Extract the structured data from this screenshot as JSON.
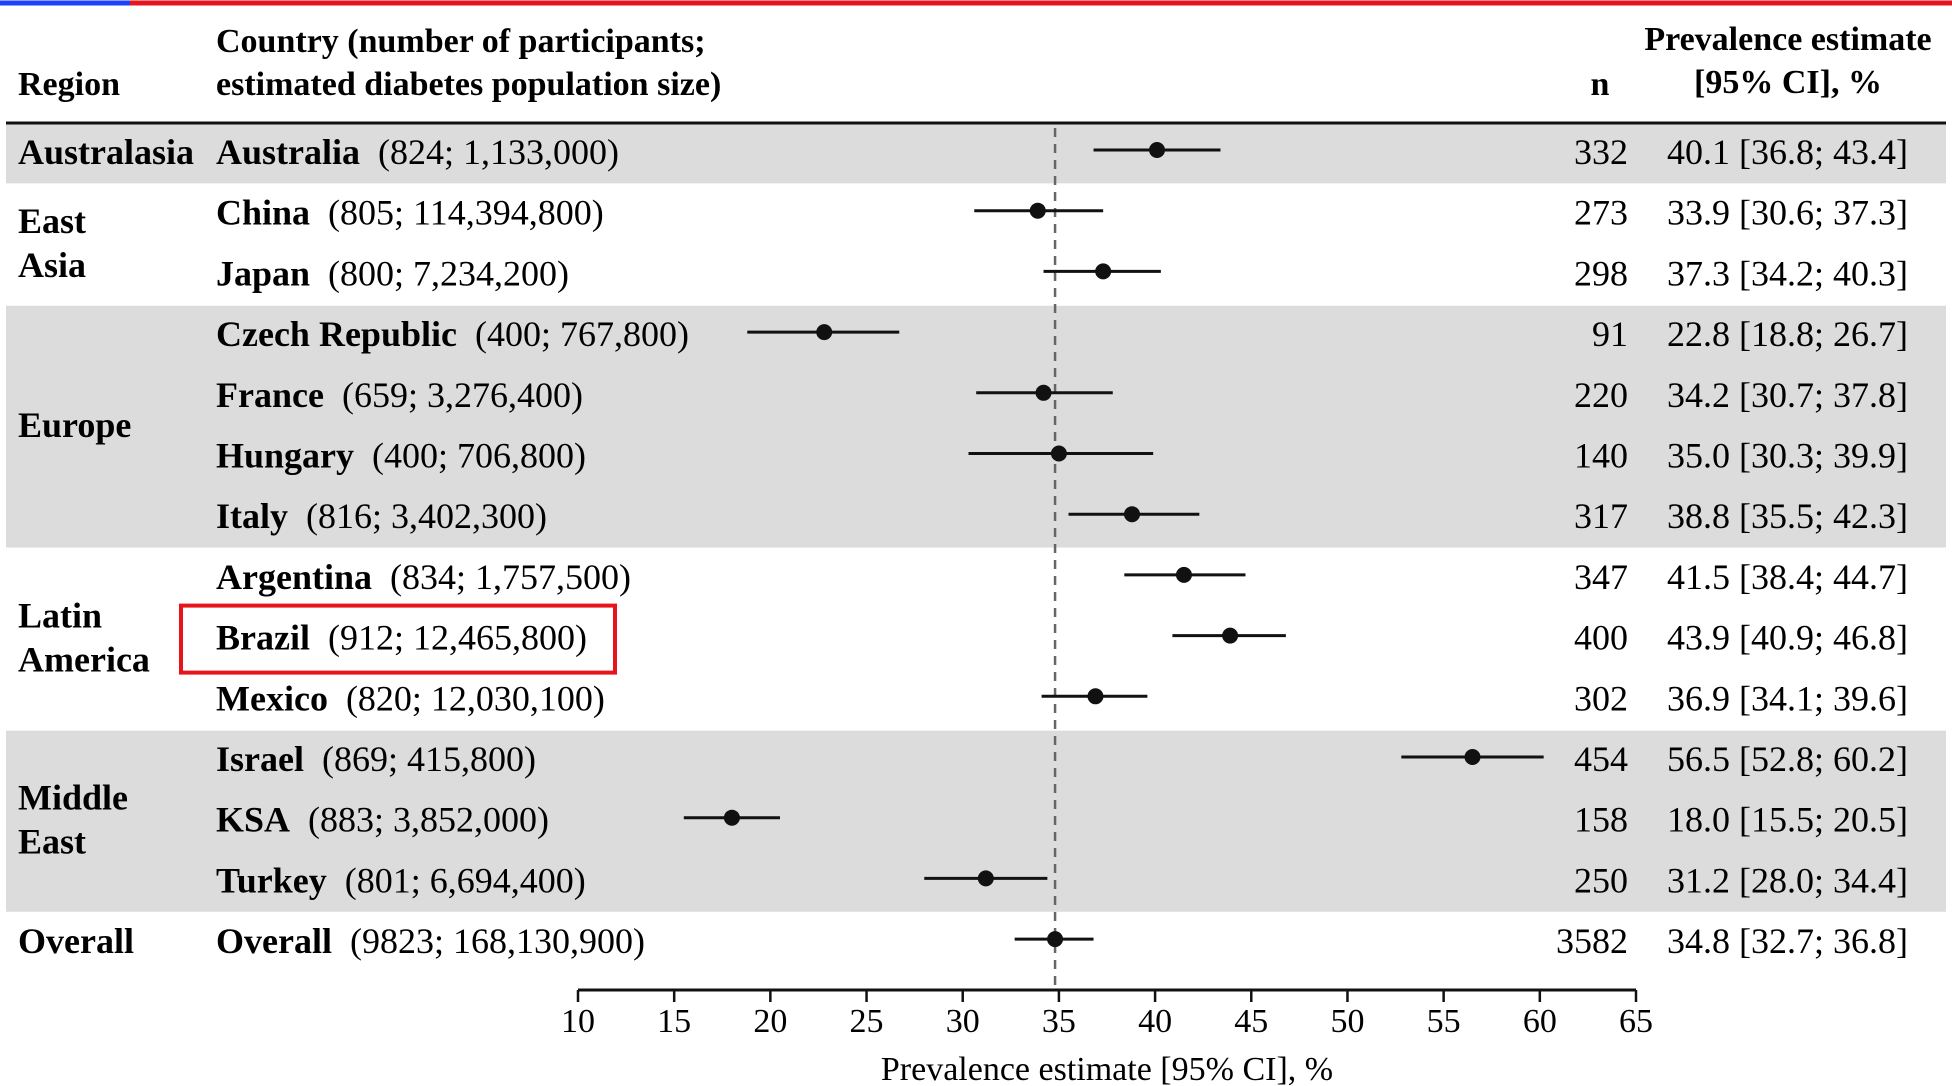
{
  "header": {
    "region": "Region",
    "country_line1": "Country (number of participants;",
    "country_line2": "estimated diabetes population size)",
    "n": "n",
    "estimate_line1": "Prevalence estimate",
    "estimate_line2": "[95% CI], %"
  },
  "colors": {
    "band": "#dcdcdc",
    "highlight": "#e8141b",
    "reference_line": "#666666",
    "marks": "#111111"
  },
  "regions": [
    {
      "lines": [
        "Australasia"
      ],
      "shaded": true
    },
    {
      "lines": [
        "East",
        "Asia"
      ],
      "shaded": false
    },
    {
      "lines": [
        "Europe"
      ],
      "shaded": true
    },
    {
      "lines": [
        "Latin",
        "America"
      ],
      "shaded": false
    },
    {
      "lines": [
        "Middle",
        "East"
      ],
      "shaded": true
    },
    {
      "lines": [
        "Overall"
      ],
      "shaded": false
    }
  ],
  "rows": [
    {
      "region_index": 0,
      "country": "Australia",
      "detail": "(824; 1,133,000)",
      "n": "332",
      "est_text": "40.1 [36.8; 43.4]",
      "highlight": false
    },
    {
      "region_index": 1,
      "country": "China",
      "detail": "(805; 114,394,800)",
      "n": "273",
      "est_text": "33.9 [30.6; 37.3]",
      "highlight": false
    },
    {
      "region_index": 1,
      "country": "Japan",
      "detail": "(800; 7,234,200)",
      "n": "298",
      "est_text": "37.3 [34.2; 40.3]",
      "highlight": false
    },
    {
      "region_index": 2,
      "country": "Czech Republic",
      "detail": "(400; 767,800)",
      "n": "91",
      "est_text": "22.8 [18.8; 26.7]",
      "highlight": false
    },
    {
      "region_index": 2,
      "country": "France",
      "detail": "(659; 3,276,400)",
      "n": "220",
      "est_text": "34.2 [30.7; 37.8]",
      "highlight": false
    },
    {
      "region_index": 2,
      "country": "Hungary",
      "detail": "(400; 706,800)",
      "n": "140",
      "est_text": "35.0 [30.3; 39.9]",
      "highlight": false
    },
    {
      "region_index": 2,
      "country": "Italy",
      "detail": "(816; 3,402,300)",
      "n": "317",
      "est_text": "38.8 [35.5; 42.3]",
      "highlight": false
    },
    {
      "region_index": 3,
      "country": "Argentina",
      "detail": "(834; 1,757,500)",
      "n": "347",
      "est_text": "41.5 [38.4; 44.7]",
      "highlight": false
    },
    {
      "region_index": 3,
      "country": "Brazil",
      "detail": "(912; 12,465,800)",
      "n": "400",
      "est_text": "43.9 [40.9; 46.8]",
      "highlight": true
    },
    {
      "region_index": 3,
      "country": "Mexico",
      "detail": "(820; 12,030,100)",
      "n": "302",
      "est_text": "36.9 [34.1; 39.6]",
      "highlight": false
    },
    {
      "region_index": 4,
      "country": "Israel",
      "detail": "(869; 415,800)",
      "n": "454",
      "est_text": "56.5 [52.8; 60.2]",
      "highlight": false
    },
    {
      "region_index": 4,
      "country": "KSA",
      "detail": "(883; 3,852,000)",
      "n": "158",
      "est_text": "18.0 [15.5; 20.5]",
      "highlight": false
    },
    {
      "region_index": 4,
      "country": "Turkey",
      "detail": "(801; 6,694,400)",
      "n": "250",
      "est_text": "31.2 [28.0; 34.4]",
      "highlight": false
    },
    {
      "region_index": 5,
      "country": "Overall",
      "detail": "(9823; 168,130,900)",
      "n": "3582",
      "est_text": "34.8 [32.7; 36.8]",
      "highlight": false
    }
  ],
  "chart_data": {
    "type": "scatter",
    "subtype": "forest-plot",
    "categories": [
      "Australia",
      "China",
      "Japan",
      "Czech Republic",
      "France",
      "Hungary",
      "Italy",
      "Argentina",
      "Brazil",
      "Mexico",
      "Israel",
      "KSA",
      "Turkey",
      "Overall"
    ],
    "series": [
      {
        "estimate": [
          40.1,
          33.9,
          37.3,
          22.8,
          34.2,
          35.0,
          38.8,
          41.5,
          43.9,
          36.9,
          56.5,
          18.0,
          31.2,
          34.8
        ],
        "ci_lower": [
          36.8,
          30.6,
          34.2,
          18.8,
          30.7,
          30.3,
          35.5,
          38.4,
          40.9,
          34.1,
          52.8,
          15.5,
          28.0,
          32.7
        ],
        "ci_upper": [
          43.4,
          37.3,
          40.3,
          26.7,
          37.8,
          39.9,
          42.3,
          44.7,
          46.8,
          39.6,
          60.2,
          20.5,
          34.4,
          36.8
        ]
      }
    ],
    "reference_line": 34.8,
    "xlabel": "Prevalence estimate [95% CI], %",
    "xlim": [
      10,
      65
    ],
    "xticks": [
      10,
      15,
      20,
      25,
      30,
      35,
      40,
      45,
      50,
      55,
      60,
      65
    ],
    "grid": false
  }
}
